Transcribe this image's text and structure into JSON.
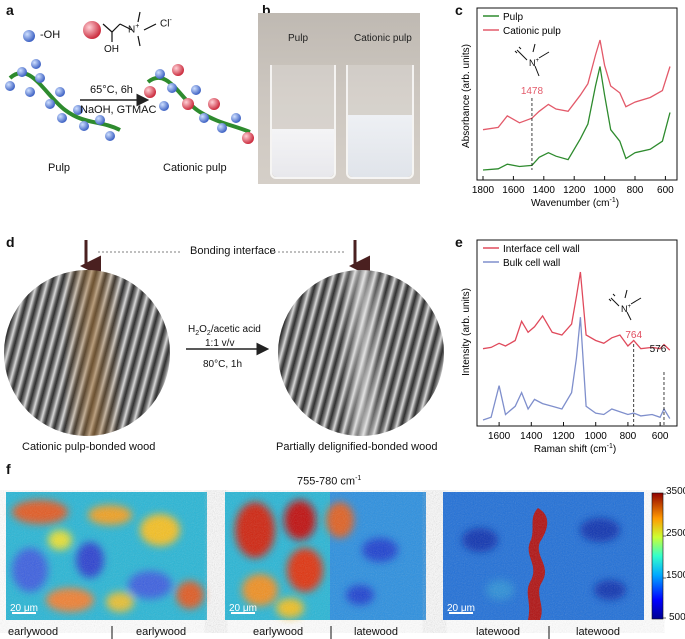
{
  "panels": {
    "a": "a",
    "b": "b",
    "c": "c",
    "d": "d",
    "e": "e",
    "f": "f"
  },
  "panel_a": {
    "legend_oh": "-OH",
    "legend_n": "N",
    "legend_plus": "+",
    "legend_cl": "Cl",
    "legend_cl_sup": "-",
    "legend_oh_group": "OH",
    "arrow_top": "65°C, 6h",
    "arrow_bottom": "NaOH, GTMAC",
    "left_label": "Pulp",
    "right_label": "Cationic pulp",
    "colors": {
      "blue_bead": "#5b7fd6",
      "red_bead": "#e0505e",
      "fiber": "#2e8b2e"
    }
  },
  "panel_b": {
    "left_label": "Pulp",
    "right_label": "Cationic pulp"
  },
  "chart_c": {
    "type": "line",
    "title": "",
    "xlabel_main": "Wavenumber (cm",
    "xlabel_sup": "-1",
    "xlabel_end": ")",
    "ylabel": "Absorbance (arb. units)",
    "xlim": [
      1800,
      550
    ],
    "ticks": [
      "1800",
      "1600",
      "1400",
      "1200",
      "1000",
      "800",
      "600"
    ],
    "legend": [
      {
        "name": "Pulp",
        "color": "#2e8b2e"
      },
      {
        "name": "Cationic pulp",
        "color": "#e35a6a"
      }
    ],
    "annotation": "1478",
    "annotation_color": "#e35a6a"
  },
  "panel_d": {
    "bonding_interface": "Bonding interface",
    "arrow_line1": "H",
    "arrow_line1_sub": "2",
    "arrow_line1_mid": "O",
    "arrow_line1_sub2": "2",
    "arrow_line1_end": "/acetic acid",
    "arrow_line2": "1:1 v/v",
    "arrow_line3": "80°C, 1h",
    "left_label": "Cationic pulp-bonded wood",
    "right_label": "Partially delignified-bonded wood"
  },
  "chart_e": {
    "type": "line",
    "xlabel_main": "Raman shift (cm",
    "xlabel_sup": "-1",
    "xlabel_end": ")",
    "ylabel": "Intensity (arb. units)",
    "xlim": [
      1700,
      520
    ],
    "ticks": [
      "1600",
      "1400",
      "1200",
      "1000",
      "800",
      "600"
    ],
    "legend": [
      {
        "name": "Interface cell wall",
        "color": "#e04a5c"
      },
      {
        "name": "Bulk cell wall",
        "color": "#7f8fcc"
      }
    ],
    "annotations": [
      {
        "text": "764",
        "color": "#e04a5c"
      },
      {
        "text": "576",
        "color": "#111111"
      }
    ]
  },
  "panel_f": {
    "title_main": "755-780 cm",
    "title_sup": "-1",
    "scalebar": "20 μm",
    "maps": [
      {
        "left": "earlywood",
        "right": "earlywood"
      },
      {
        "left": "earlywood",
        "right": "latewood"
      },
      {
        "left": "latewood",
        "right": "latewood"
      }
    ],
    "colorbar_ticks": [
      "3500",
      "2500",
      "1500",
      "500"
    ]
  },
  "chart_data": [
    {
      "type": "line",
      "title": "",
      "xlabel": "Wavenumber (cm-1)",
      "ylabel": "Absorbance (arb. units)",
      "xlim": [
        1800,
        550
      ],
      "series": [
        {
          "name": "Pulp",
          "x": [
            1800,
            1700,
            1640,
            1560,
            1478,
            1430,
            1370,
            1320,
            1240,
            1160,
            1110,
            1060,
            1030,
            1000,
            960,
            900,
            860,
            800,
            700,
            620,
            570
          ],
          "y": [
            0.05,
            0.06,
            0.1,
            0.08,
            0.09,
            0.16,
            0.2,
            0.17,
            0.14,
            0.32,
            0.45,
            0.78,
            0.95,
            0.7,
            0.4,
            0.3,
            0.15,
            0.2,
            0.23,
            0.3,
            0.55
          ]
        },
        {
          "name": "Cationic pulp",
          "x": [
            1800,
            1700,
            1640,
            1560,
            1478,
            1430,
            1370,
            1320,
            1240,
            1160,
            1110,
            1060,
            1030,
            1000,
            960,
            900,
            860,
            800,
            700,
            620,
            570
          ],
          "y": [
            0.4,
            0.42,
            0.52,
            0.46,
            0.5,
            0.56,
            0.62,
            0.58,
            0.56,
            0.7,
            0.8,
            1.05,
            1.18,
            0.96,
            0.78,
            0.72,
            0.6,
            0.64,
            0.68,
            0.74,
            0.95
          ]
        }
      ],
      "annotations": [
        {
          "x": 1478,
          "text": "1478"
        }
      ]
    },
    {
      "type": "line",
      "title": "",
      "xlabel": "Raman shift (cm-1)",
      "ylabel": "Intensity (arb. units)",
      "xlim": [
        1700,
        520
      ],
      "series": [
        {
          "name": "Interface cell wall",
          "x": [
            1700,
            1650,
            1600,
            1560,
            1500,
            1460,
            1420,
            1380,
            1330,
            1270,
            1210,
            1150,
            1120,
            1095,
            1060,
            1000,
            950,
            900,
            850,
            800,
            764,
            720,
            650,
            600,
            576,
            540
          ],
          "y": [
            0.62,
            0.63,
            0.66,
            0.64,
            0.68,
            0.82,
            0.74,
            0.78,
            0.86,
            0.74,
            0.72,
            0.8,
            1.0,
            1.18,
            0.72,
            0.68,
            0.66,
            0.7,
            0.72,
            0.64,
            0.68,
            0.62,
            0.63,
            0.62,
            0.65,
            0.61
          ]
        },
        {
          "name": "Bulk cell wall",
          "x": [
            1700,
            1650,
            1600,
            1560,
            1500,
            1460,
            1420,
            1380,
            1330,
            1270,
            1210,
            1150,
            1120,
            1095,
            1060,
            1000,
            950,
            900,
            850,
            800,
            764,
            720,
            650,
            600,
            576,
            540
          ],
          "y": [
            0.1,
            0.12,
            0.35,
            0.14,
            0.2,
            0.3,
            0.18,
            0.25,
            0.22,
            0.2,
            0.18,
            0.3,
            0.55,
            0.85,
            0.2,
            0.15,
            0.14,
            0.18,
            0.16,
            0.14,
            0.15,
            0.13,
            0.14,
            0.12,
            0.18,
            0.11
          ]
        }
      ],
      "annotations": [
        {
          "x": 764,
          "text": "764"
        },
        {
          "x": 576,
          "text": "576"
        }
      ]
    }
  ]
}
